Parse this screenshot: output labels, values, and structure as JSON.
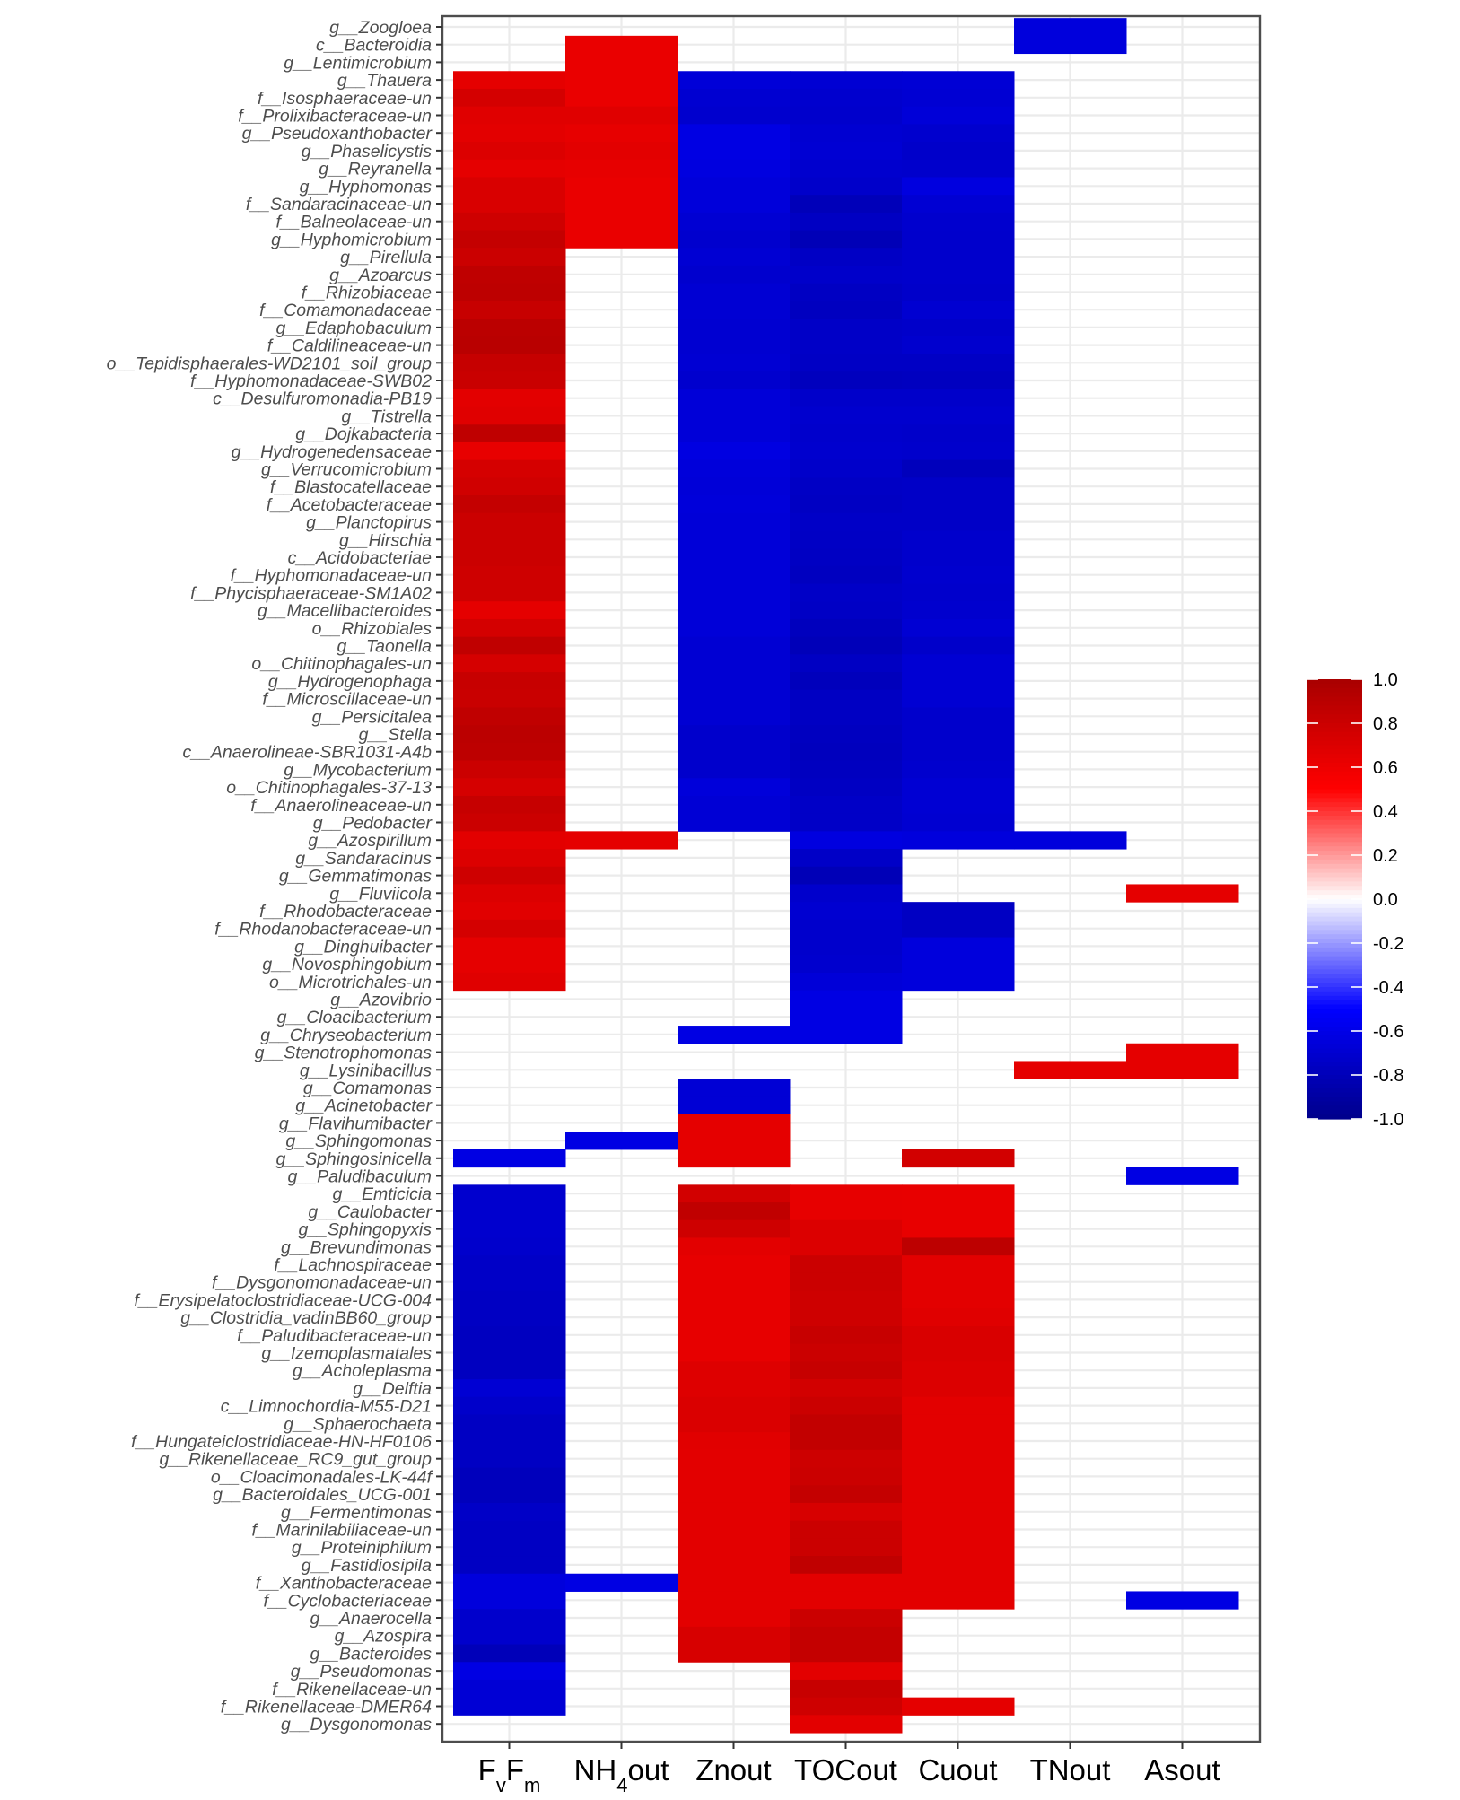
{
  "chart_data": {
    "type": "heatmap",
    "title": "",
    "xlabel": "",
    "ylabel": "",
    "columns": [
      {
        "label": "FvFm",
        "base": [
          "F",
          "F"
        ],
        "sub": [
          "v",
          "m"
        ]
      },
      {
        "label": "NH4out",
        "base": [
          "NH",
          "out"
        ],
        "sub": [
          "4",
          ""
        ]
      },
      {
        "label": "Znout",
        "base": [
          "Znout"
        ],
        "sub": [
          ""
        ]
      },
      {
        "label": "TOCout",
        "base": [
          "TOCout"
        ],
        "sub": [
          ""
        ]
      },
      {
        "label": "Cuout",
        "base": [
          "Cuout"
        ],
        "sub": [
          ""
        ]
      },
      {
        "label": "TNout",
        "base": [
          "TNout"
        ],
        "sub": [
          ""
        ]
      },
      {
        "label": "Asout",
        "base": [
          "Asout"
        ],
        "sub": [
          ""
        ]
      }
    ],
    "rows": [
      "g__Zoogloea",
      "c__Bacteroidia",
      "g__Lentimicrobium",
      "g__Thauera",
      "f__Isosphaeraceae-un",
      "f__Prolixibacteraceae-un",
      "g__Pseudoxanthobacter",
      "g__Phaselicystis",
      "g__Reyranella",
      "g__Hyphomonas",
      "f__Sandaracinaceae-un",
      "f__Balneolaceae-un",
      "g__Hyphomicrobium",
      "g__Pirellula",
      "g__Azoarcus",
      "f__Rhizobiaceae",
      "f__Comamonadaceae",
      "g__Edaphobaculum",
      "f__Caldilineaceae-un",
      "o__Tepidisphaerales-WD2101_soil_group",
      "f__Hyphomonadaceae-SWB02",
      "c__Desulfuromonadia-PB19",
      "g__Tistrella",
      "g__Dojkabacteria",
      "g__Hydrogenedensaceae",
      "g__Verrucomicrobium",
      "f__Blastocatellaceae",
      "f__Acetobacteraceae",
      "g__Planctopirus",
      "g__Hirschia",
      "c__Acidobacteriae",
      "f__Hyphomonadaceae-un",
      "f__Phycisphaeraceae-SM1A02",
      "g__Macellibacteroides",
      "o__Rhizobiales",
      "g__Taonella",
      "o__Chitinophagales-un",
      "g__Hydrogenophaga",
      "f__Microscillaceae-un",
      "g__Persicitalea",
      "g__Stella",
      "c__Anaerolineae-SBR1031-A4b",
      "g__Mycobacterium",
      "o__Chitinophagales-37-13",
      "f__Anaerolineaceae-un",
      "g__Pedobacter",
      "g__Azospirillum",
      "g__Sandaracinus",
      "g__Gemmatimonas",
      "g__Fluviicola",
      "f__Rhodobacteraceae",
      "f__Rhodanobacteraceae-un",
      "g__Dinghuibacter",
      "g__Novosphingobium",
      "o__Microtrichales-un",
      "g__Azovibrio",
      "g__Cloacibacterium",
      "g__Chryseobacterium",
      "g__Stenotrophomonas",
      "g__Lysinibacillus",
      "g__Comamonas",
      "g__Acinetobacter",
      "g__Flavihumibacter",
      "g__Sphingomonas",
      "g__Sphingosinicella",
      "g__Paludibaculum",
      "g__Emticicia",
      "g__Caulobacter",
      "g__Sphingopyxis",
      "g__Brevundimonas",
      "f__Lachnospiraceae",
      "f__Dysgonomonadaceae-un",
      "f__Erysipelatoclostridiaceae-UCG-004",
      "g__Clostridia_vadinBB60_group",
      "f__Paludibacteraceae-un",
      "g__Izemoplasmatales",
      "g__Acholeplasma",
      "g__Delftia",
      "c__Limnochordia-M55-D21",
      "g__Sphaerochaeta",
      "f__Hungateiclostridiaceae-HN-HF0106",
      "g__Rikenellaceae_RC9_gut_group",
      "o__Cloacimonadales-LK-44f",
      "g__Bacteroidales_UCG-001",
      "g__Fermentimonas",
      "f__Marinilabiliaceae-un",
      "g__Proteiniphilum",
      "g__Fastidiosipila",
      "f__Xanthobacteraceae",
      "f__Cyclobacteriaceae",
      "g__Anaerocella",
      "g__Azospira",
      "g__Bacteroides",
      "g__Pseudomonas",
      "f__Rikenellaceae-un",
      "f__Rikenellaceae-DMER64",
      "g__Dysgonomonas"
    ],
    "values_note": "Spearman correlation coefficients; null = not significant (blank cell). Column order: FvFm, NH4out, Znout, TOCout, Cuout, TNout, Asout",
    "values": [
      [
        null,
        null,
        null,
        null,
        null,
        -0.65,
        null
      ],
      [
        null,
        0.62,
        null,
        null,
        null,
        -0.65,
        null
      ],
      [
        null,
        0.62,
        null,
        null,
        null,
        null,
        null
      ],
      [
        0.65,
        0.62,
        -0.67,
        -0.69,
        -0.68,
        null,
        null
      ],
      [
        0.75,
        0.62,
        -0.7,
        -0.71,
        -0.69,
        null,
        null
      ],
      [
        0.68,
        0.68,
        -0.71,
        -0.72,
        -0.67,
        null,
        null
      ],
      [
        0.66,
        0.64,
        -0.62,
        -0.7,
        -0.71,
        null,
        null
      ],
      [
        0.7,
        0.66,
        -0.62,
        -0.69,
        -0.73,
        null,
        null
      ],
      [
        0.65,
        0.64,
        -0.64,
        -0.71,
        -0.72,
        null,
        null
      ],
      [
        0.72,
        0.62,
        -0.66,
        -0.73,
        -0.64,
        null,
        null
      ],
      [
        0.72,
        0.62,
        -0.66,
        -0.8,
        -0.69,
        null,
        null
      ],
      [
        0.78,
        0.62,
        -0.69,
        -0.76,
        -0.71,
        null,
        null
      ],
      [
        0.84,
        0.62,
        -0.71,
        -0.81,
        -0.72,
        null,
        null
      ],
      [
        0.8,
        null,
        -0.69,
        -0.75,
        -0.72,
        null,
        null
      ],
      [
        0.87,
        null,
        -0.71,
        -0.73,
        -0.72,
        null,
        null
      ],
      [
        0.88,
        null,
        -0.69,
        -0.76,
        -0.73,
        null,
        null
      ],
      [
        0.82,
        null,
        -0.69,
        -0.77,
        -0.7,
        null,
        null
      ],
      [
        0.89,
        null,
        -0.7,
        -0.74,
        -0.73,
        null,
        null
      ],
      [
        0.9,
        null,
        -0.7,
        -0.74,
        -0.71,
        null,
        null
      ],
      [
        0.83,
        null,
        -0.69,
        -0.75,
        -0.75,
        null,
        null
      ],
      [
        0.81,
        null,
        -0.71,
        -0.78,
        -0.77,
        null,
        null
      ],
      [
        0.66,
        null,
        -0.67,
        -0.73,
        -0.73,
        null,
        null
      ],
      [
        0.68,
        null,
        -0.67,
        -0.71,
        -0.71,
        null,
        null
      ],
      [
        0.87,
        null,
        -0.67,
        -0.72,
        -0.73,
        null,
        null
      ],
      [
        0.63,
        null,
        -0.63,
        -0.71,
        -0.72,
        null,
        null
      ],
      [
        0.74,
        null,
        -0.66,
        -0.73,
        -0.79,
        null,
        null
      ],
      [
        0.77,
        null,
        -0.67,
        -0.75,
        -0.74,
        null,
        null
      ],
      [
        0.84,
        null,
        -0.66,
        -0.76,
        -0.74,
        null,
        null
      ],
      [
        0.8,
        null,
        -0.67,
        -0.74,
        -0.74,
        null,
        null
      ],
      [
        0.8,
        null,
        -0.67,
        -0.75,
        -0.72,
        null,
        null
      ],
      [
        0.8,
        null,
        -0.67,
        -0.76,
        -0.72,
        null,
        null
      ],
      [
        0.78,
        null,
        -0.67,
        -0.77,
        -0.71,
        null,
        null
      ],
      [
        0.78,
        null,
        -0.67,
        -0.74,
        -0.72,
        null,
        null
      ],
      [
        0.65,
        null,
        -0.67,
        -0.75,
        -0.71,
        null,
        null
      ],
      [
        0.75,
        null,
        -0.67,
        -0.78,
        -0.69,
        null,
        null
      ],
      [
        0.86,
        null,
        -0.69,
        -0.8,
        -0.73,
        null,
        null
      ],
      [
        0.74,
        null,
        -0.69,
        -0.76,
        -0.69,
        null,
        null
      ],
      [
        0.82,
        null,
        -0.69,
        -0.79,
        -0.69,
        null,
        null
      ],
      [
        0.81,
        null,
        -0.69,
        -0.76,
        -0.69,
        null,
        null
      ],
      [
        0.86,
        null,
        -0.69,
        -0.76,
        -0.72,
        null,
        null
      ],
      [
        0.89,
        null,
        -0.72,
        -0.77,
        -0.72,
        null,
        null
      ],
      [
        0.88,
        null,
        -0.72,
        -0.78,
        -0.72,
        null,
        null
      ],
      [
        0.8,
        null,
        -0.72,
        -0.77,
        -0.71,
        null,
        null
      ],
      [
        0.74,
        null,
        -0.66,
        -0.76,
        -0.69,
        null,
        null
      ],
      [
        0.83,
        null,
        -0.68,
        -0.74,
        -0.69,
        null,
        null
      ],
      [
        0.8,
        null,
        -0.68,
        -0.74,
        -0.7,
        null,
        null
      ],
      [
        0.66,
        0.65,
        null,
        -0.64,
        -0.65,
        -0.65,
        null
      ],
      [
        0.7,
        null,
        null,
        -0.74,
        null,
        null,
        null
      ],
      [
        0.78,
        null,
        null,
        -0.81,
        null,
        null,
        null
      ],
      [
        0.7,
        null,
        null,
        -0.72,
        null,
        null,
        0.65
      ],
      [
        0.67,
        null,
        null,
        -0.7,
        -0.76,
        null,
        null
      ],
      [
        0.75,
        null,
        null,
        -0.72,
        -0.76,
        null,
        null
      ],
      [
        0.65,
        null,
        null,
        -0.72,
        -0.65,
        null,
        null
      ],
      [
        0.65,
        null,
        null,
        -0.71,
        -0.65,
        null,
        null
      ],
      [
        0.68,
        null,
        null,
        -0.67,
        -0.65,
        null,
        null
      ],
      [
        null,
        null,
        null,
        -0.62,
        null,
        null,
        null
      ],
      [
        null,
        null,
        null,
        -0.62,
        null,
        null,
        null
      ],
      [
        null,
        null,
        -0.62,
        -0.62,
        null,
        null,
        null
      ],
      [
        null,
        null,
        null,
        null,
        null,
        null,
        0.65
      ],
      [
        null,
        null,
        null,
        null,
        null,
        0.65,
        0.65
      ],
      [
        null,
        null,
        -0.68,
        null,
        null,
        null,
        null
      ],
      [
        null,
        null,
        -0.68,
        null,
        null,
        null,
        null
      ],
      [
        null,
        null,
        0.65,
        null,
        null,
        null,
        null
      ],
      [
        null,
        -0.62,
        0.65,
        null,
        null,
        null,
        null
      ],
      [
        -0.62,
        null,
        0.65,
        null,
        0.76,
        null,
        null
      ],
      [
        null,
        null,
        null,
        null,
        null,
        null,
        -0.62
      ],
      [
        -0.71,
        null,
        0.76,
        0.64,
        0.63,
        null,
        null
      ],
      [
        -0.71,
        null,
        0.86,
        0.64,
        0.63,
        null,
        null
      ],
      [
        -0.71,
        null,
        0.78,
        0.7,
        0.63,
        null,
        null
      ],
      [
        -0.72,
        null,
        0.66,
        0.7,
        0.88,
        null,
        null
      ],
      [
        -0.74,
        null,
        0.64,
        0.8,
        0.66,
        null,
        null
      ],
      [
        -0.74,
        null,
        0.64,
        0.8,
        0.66,
        null,
        null
      ],
      [
        -0.76,
        null,
        0.64,
        0.78,
        0.66,
        null,
        null
      ],
      [
        -0.76,
        null,
        0.64,
        0.78,
        0.68,
        null,
        null
      ],
      [
        -0.77,
        null,
        0.64,
        0.82,
        0.72,
        null,
        null
      ],
      [
        -0.77,
        null,
        0.64,
        0.8,
        0.72,
        null,
        null
      ],
      [
        -0.77,
        null,
        0.69,
        0.83,
        0.7,
        null,
        null
      ],
      [
        -0.69,
        null,
        0.69,
        0.76,
        0.7,
        null,
        null
      ],
      [
        -0.73,
        null,
        0.71,
        0.8,
        0.66,
        null,
        null
      ],
      [
        -0.76,
        null,
        0.71,
        0.85,
        0.66,
        null,
        null
      ],
      [
        -0.76,
        null,
        0.67,
        0.85,
        0.66,
        null,
        null
      ],
      [
        -0.76,
        null,
        0.66,
        0.79,
        0.66,
        null,
        null
      ],
      [
        -0.79,
        null,
        0.66,
        0.8,
        0.66,
        null,
        null
      ],
      [
        -0.79,
        null,
        0.66,
        0.84,
        0.66,
        null,
        null
      ],
      [
        -0.74,
        null,
        0.66,
        0.73,
        0.66,
        null,
        null
      ],
      [
        -0.76,
        null,
        0.66,
        0.8,
        0.66,
        null,
        null
      ],
      [
        -0.76,
        null,
        0.66,
        0.8,
        0.66,
        null,
        null
      ],
      [
        -0.76,
        null,
        0.66,
        0.86,
        0.66,
        null,
        null
      ],
      [
        -0.65,
        -0.62,
        0.66,
        0.66,
        0.66,
        null,
        null
      ],
      [
        -0.65,
        null,
        0.66,
        0.66,
        0.66,
        null,
        -0.62
      ],
      [
        -0.72,
        null,
        0.66,
        0.8,
        null,
        null,
        null
      ],
      [
        -0.72,
        null,
        0.73,
        0.84,
        null,
        null,
        null
      ],
      [
        -0.8,
        null,
        0.73,
        0.84,
        null,
        null,
        null
      ],
      [
        -0.62,
        null,
        null,
        0.66,
        null,
        null,
        null
      ],
      [
        -0.68,
        null,
        null,
        0.82,
        null,
        null,
        null
      ],
      [
        -0.68,
        null,
        null,
        0.78,
        0.65,
        null,
        null
      ],
      [
        null,
        null,
        null,
        0.66,
        null,
        null,
        null
      ]
    ],
    "legend": {
      "position": "right",
      "ticks": [
        1.0,
        0.8,
        0.6,
        0.4,
        0.2,
        0.0,
        -0.2,
        -0.4,
        -0.6,
        -0.8,
        -1.0
      ],
      "tick_labels": [
        "1.0",
        "0.8",
        "0.6",
        "0.4",
        "0.2",
        "0.0",
        "-0.2",
        "-0.4",
        "-0.6",
        "-0.8",
        "-1.0"
      ],
      "range": [
        -1.0,
        1.0
      ],
      "colors": {
        "low": "#00008b",
        "mid_low": "#0000ff",
        "zero": "#ffffff",
        "mid_high": "#ff0000",
        "high": "#a80000"
      }
    },
    "grid": true
  }
}
